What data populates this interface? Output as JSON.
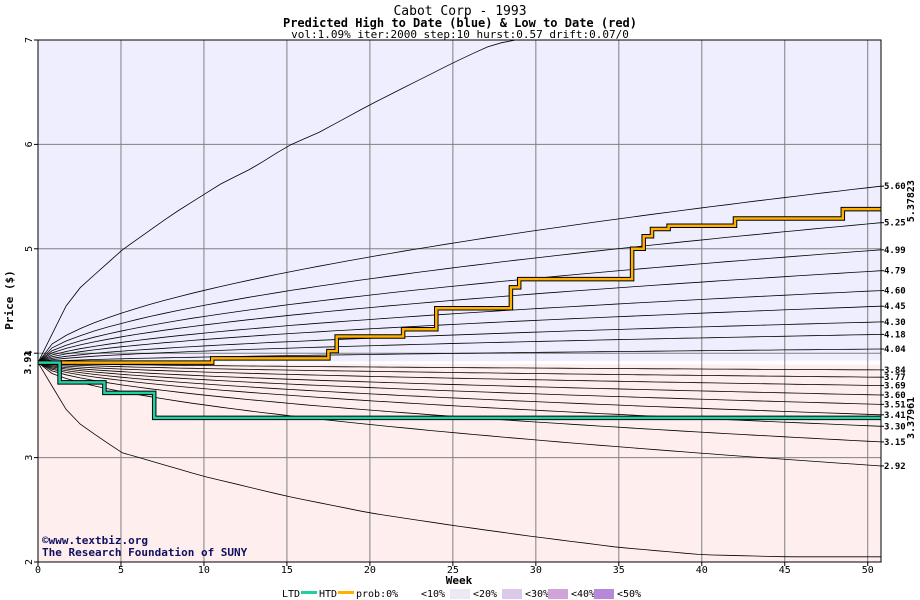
{
  "chart_data": {
    "type": "area",
    "title": "Cabot Corp - 1993",
    "subtitle": "Predicted High to Date (blue) &  Low to Date (red)",
    "params": "vol:1.09% iter:2000 step:10 hurst:0.57 drift:0.07/0",
    "xlabel": "Week",
    "ylabel": "Price ($)",
    "xlim": [
      0,
      50.8
    ],
    "ylim": [
      2,
      7
    ],
    "x_ticks": [
      0,
      5,
      10,
      15,
      20,
      25,
      30,
      35,
      40,
      45,
      50
    ],
    "y_ticks": [
      2,
      3,
      4,
      5,
      6,
      7
    ],
    "grid": true,
    "start_value": 3.91,
    "start_label": "3.91",
    "high_quantiles": [
      {
        "label": "5.60",
        "y": 5.6
      },
      {
        "label": "5.25",
        "y": 5.25
      },
      {
        "label": "4.99",
        "y": 4.99
      },
      {
        "label": "4.79",
        "y": 4.79
      },
      {
        "label": "4.60",
        "y": 4.6
      },
      {
        "label": "4.45",
        "y": 4.45
      },
      {
        "label": "4.30",
        "y": 4.3
      },
      {
        "label": "4.18",
        "y": 4.18
      },
      {
        "label": "4.04",
        "y": 4.04
      }
    ],
    "low_quantiles": [
      {
        "label": "3.84",
        "y": 3.84
      },
      {
        "label": "3.77",
        "y": 3.77
      },
      {
        "label": "3.69",
        "y": 3.69
      },
      {
        "label": "3.60",
        "y": 3.6
      },
      {
        "label": "3.51",
        "y": 3.51
      },
      {
        "label": "3.41",
        "y": 3.41
      },
      {
        "label": "3.30",
        "y": 3.3
      },
      {
        "label": "3.15",
        "y": 3.15
      },
      {
        "label": "2.92",
        "y": 2.92
      }
    ],
    "outer_high_path": {
      "x": [
        0,
        2,
        5,
        8,
        11,
        13,
        15,
        17,
        20,
        23,
        25,
        27,
        28.5
      ],
      "y": [
        3.91,
        4.55,
        4.98,
        5.32,
        5.62,
        5.78,
        5.98,
        6.12,
        6.38,
        6.62,
        6.78,
        6.93,
        7.0
      ]
    },
    "outer_low_path": {
      "x": [
        0,
        2,
        5,
        10,
        15,
        20,
        25,
        30,
        35,
        40,
        45,
        50.8
      ],
      "y": [
        3.91,
        3.38,
        3.05,
        2.82,
        2.63,
        2.47,
        2.35,
        2.24,
        2.14,
        2.07,
        2.05,
        2.05
      ]
    },
    "series": [
      {
        "name": "HTD",
        "color": "#ffb000",
        "x": [
          0,
          10.5,
          10.5,
          17.5,
          17.5,
          18,
          18,
          22,
          22,
          24,
          24,
          28.5,
          28.5,
          29,
          29,
          35.8,
          35.8,
          36.5,
          36.5,
          37,
          37,
          38,
          38,
          42,
          42,
          48.5,
          48.5,
          50.8
        ],
        "y": [
          3.91,
          3.91,
          3.95,
          3.95,
          4.02,
          4.02,
          4.16,
          4.16,
          4.23,
          4.23,
          4.43,
          4.43,
          4.63,
          4.63,
          4.71,
          4.71,
          5.0,
          5.0,
          5.12,
          5.12,
          5.19,
          5.19,
          5.22,
          5.22,
          5.29,
          5.29,
          5.38,
          5.38
        ]
      },
      {
        "name": "LTD",
        "color": "#20d0a0",
        "x": [
          0,
          1.3,
          1.3,
          4,
          4,
          7,
          7,
          50.8
        ],
        "y": [
          3.91,
          3.91,
          3.72,
          3.72,
          3.62,
          3.62,
          3.38,
          3.38
        ]
      }
    ],
    "series_end_labels": {
      "high": "5.37823",
      "low": "3.37961"
    },
    "legend": {
      "placement": "bottom",
      "ltd_label": "LTD",
      "htd_label": "HTD",
      "prob_label": "prob:0%",
      "bins": [
        "<10%",
        "<20%",
        "<30%",
        "<40%",
        "<50%"
      ]
    },
    "credit_line1": "©www.textbiz.org",
    "credit_line2": "The Research Foundation of SUNY",
    "colors": {
      "blue_bands": [
        "#f3f3ff",
        "#dedeff",
        "#cacaff",
        "#b6b6ff",
        "#a2a2fa",
        "#8e8ef4",
        "#7a7aee",
        "#6a6ae8",
        "#9c9cf4",
        "#c4c4fa"
      ],
      "red_bands": [
        "#fef0f0",
        "#ffdada",
        "#ffc4c4",
        "#ffaeae",
        "#ff9898",
        "#f88484",
        "#f88484",
        "#f88484",
        "#ffaaaa",
        "#ffd0d0"
      ],
      "grid": "#808080",
      "htd": "#ffb000",
      "ltd": "#20d0a0",
      "high_label": "#b08000",
      "low_label": "#008060",
      "start_label": "#006000"
    }
  }
}
